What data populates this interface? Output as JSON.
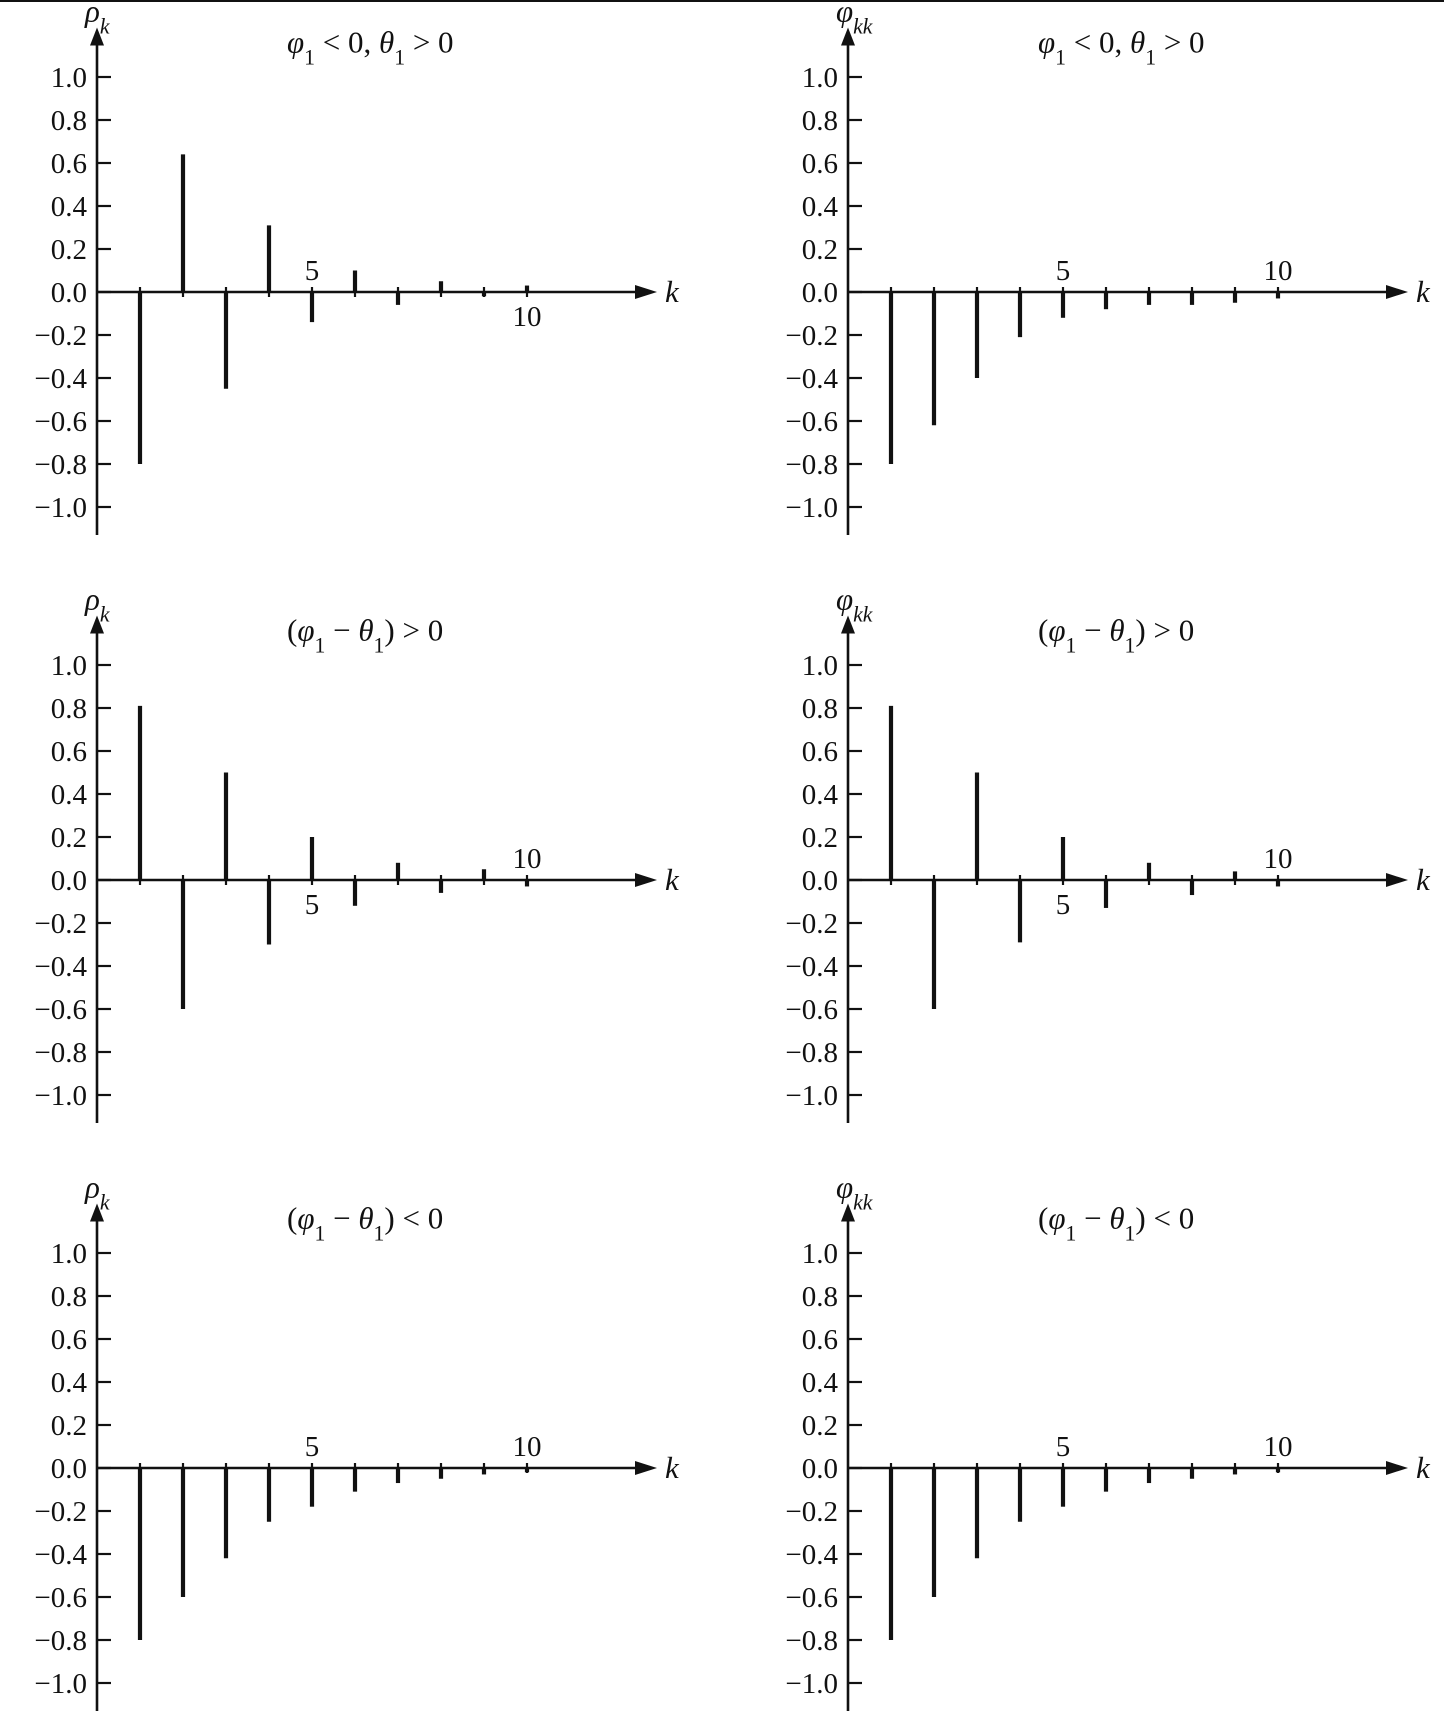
{
  "chart_data": [
    {
      "type": "bar",
      "title": "φ1 < 0, θ1 > 0",
      "ylabel": "ρk",
      "xlabel": "k",
      "ylim": [
        -1.0,
        1.0
      ],
      "yticks": [
        "1.0",
        "0.8",
        "0.6",
        "0.4",
        "0.2",
        "0.0",
        "−0.2",
        "−0.4",
        "−0.6",
        "−0.8",
        "−1.0"
      ],
      "xticks": [
        "5",
        "10"
      ],
      "x": [
        1,
        2,
        3,
        4,
        5,
        6,
        7,
        8,
        9,
        10
      ],
      "values": [
        -0.8,
        0.64,
        -0.45,
        0.31,
        -0.14,
        0.1,
        -0.06,
        0.05,
        -0.02,
        0.03
      ]
    },
    {
      "type": "bar",
      "title": "φ1 < 0, θ1 > 0",
      "ylabel": "φkk",
      "xlabel": "k",
      "ylim": [
        -1.0,
        1.0
      ],
      "yticks": [
        "1.0",
        "0.8",
        "0.6",
        "0.4",
        "0.2",
        "0.0",
        "−0.2",
        "−0.4",
        "−0.6",
        "−0.8",
        "−1.0"
      ],
      "xticks": [
        "5",
        "10"
      ],
      "x": [
        1,
        2,
        3,
        4,
        5,
        6,
        7,
        8,
        9,
        10
      ],
      "values": [
        -0.8,
        -0.62,
        -0.4,
        -0.21,
        -0.12,
        -0.08,
        -0.06,
        -0.06,
        -0.05,
        -0.03
      ]
    },
    {
      "type": "bar",
      "title": "(φ1 − θ1) > 0",
      "ylabel": "ρk",
      "xlabel": "k",
      "ylim": [
        -1.0,
        1.0
      ],
      "yticks": [
        "1.0",
        "0.8",
        "0.6",
        "0.4",
        "0.2",
        "0.0",
        "−0.2",
        "−0.4",
        "−0.6",
        "−0.8",
        "−1.0"
      ],
      "xticks": [
        "5",
        "10"
      ],
      "x": [
        1,
        2,
        3,
        4,
        5,
        6,
        7,
        8,
        9,
        10
      ],
      "values": [
        0.81,
        -0.6,
        0.5,
        -0.3,
        0.2,
        -0.12,
        0.08,
        -0.06,
        0.05,
        -0.03
      ]
    },
    {
      "type": "bar",
      "title": "(φ1 − θ1) > 0",
      "ylabel": "φkk",
      "xlabel": "k",
      "ylim": [
        -1.0,
        1.0
      ],
      "yticks": [
        "1.0",
        "0.8",
        "0.6",
        "0.4",
        "0.2",
        "0.0",
        "−0.2",
        "−0.4",
        "−0.6",
        "−0.8",
        "−1.0"
      ],
      "xticks": [
        "5",
        "10"
      ],
      "x": [
        1,
        2,
        3,
        4,
        5,
        6,
        7,
        8,
        9,
        10
      ],
      "values": [
        0.81,
        -0.6,
        0.5,
        -0.29,
        0.2,
        -0.13,
        0.08,
        -0.07,
        0.04,
        -0.03
      ]
    },
    {
      "type": "bar",
      "title": "(φ1 − θ1) < 0",
      "ylabel": "ρk",
      "xlabel": "k",
      "ylim": [
        -1.0,
        1.0
      ],
      "yticks": [
        "1.0",
        "0.8",
        "0.6",
        "0.4",
        "0.2",
        "0.0",
        "−0.2",
        "−0.4",
        "−0.6",
        "−0.8",
        "−1.0"
      ],
      "xticks": [
        "5",
        "10"
      ],
      "x": [
        1,
        2,
        3,
        4,
        5,
        6,
        7,
        8,
        9,
        10
      ],
      "values": [
        -0.8,
        -0.6,
        -0.42,
        -0.25,
        -0.18,
        -0.11,
        -0.07,
        -0.05,
        -0.03,
        -0.02
      ]
    },
    {
      "type": "bar",
      "title": "(φ1 − θ1) < 0",
      "ylabel": "φkk",
      "xlabel": "k",
      "ylim": [
        -1.0,
        1.0
      ],
      "yticks": [
        "1.0",
        "0.8",
        "0.6",
        "0.4",
        "0.2",
        "0.0",
        "−0.2",
        "−0.4",
        "−0.6",
        "−0.8",
        "−1.0"
      ],
      "xticks": [
        "5",
        "10"
      ],
      "x": [
        1,
        2,
        3,
        4,
        5,
        6,
        7,
        8,
        9,
        10
      ],
      "values": [
        -0.8,
        -0.6,
        -0.42,
        -0.25,
        -0.18,
        -0.11,
        -0.07,
        -0.05,
        -0.03,
        -0.02
      ]
    }
  ]
}
